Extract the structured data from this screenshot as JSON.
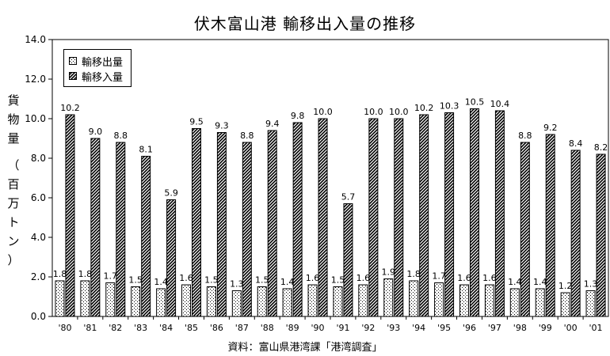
{
  "chart_data": {
    "type": "bar",
    "title": "伏木富山港 輸移出入量の推移",
    "ylabel": "貨物量（百万トン）",
    "xlabel": "",
    "source": "資料：富山県港湾課「港湾調査」",
    "categories": [
      "'80",
      "'81",
      "'82",
      "'83",
      "'84",
      "'85",
      "'86",
      "'87",
      "'88",
      "'89",
      "'90",
      "'91",
      "'92",
      "'93",
      "'94",
      "'95",
      "'96",
      "'97",
      "'98",
      "'99",
      "'00",
      "'01"
    ],
    "series": [
      {
        "name": "輸移出量",
        "pattern": "dots",
        "values": [
          1.8,
          1.8,
          1.7,
          1.5,
          1.4,
          1.6,
          1.5,
          1.3,
          1.5,
          1.4,
          1.6,
          1.5,
          1.6,
          1.9,
          1.8,
          1.7,
          1.6,
          1.6,
          1.4,
          1.4,
          1.2,
          1.3
        ]
      },
      {
        "name": "輸移入量",
        "pattern": "hatch",
        "values": [
          10.2,
          9.0,
          8.8,
          8.1,
          5.9,
          9.5,
          9.3,
          8.8,
          9.4,
          9.8,
          10.0,
          5.7,
          10.0,
          10.0,
          10.2,
          10.3,
          10.5,
          10.4,
          8.8,
          9.2,
          8.4,
          8.2
        ]
      }
    ],
    "yticks": [
      "0.0",
      "2.0",
      "4.0",
      "6.0",
      "8.0",
      "10.0",
      "12.0",
      "14.0"
    ],
    "ylim": [
      0,
      14
    ],
    "legend": "top-left",
    "grid": false,
    "value_label_format": "one-decimal"
  }
}
